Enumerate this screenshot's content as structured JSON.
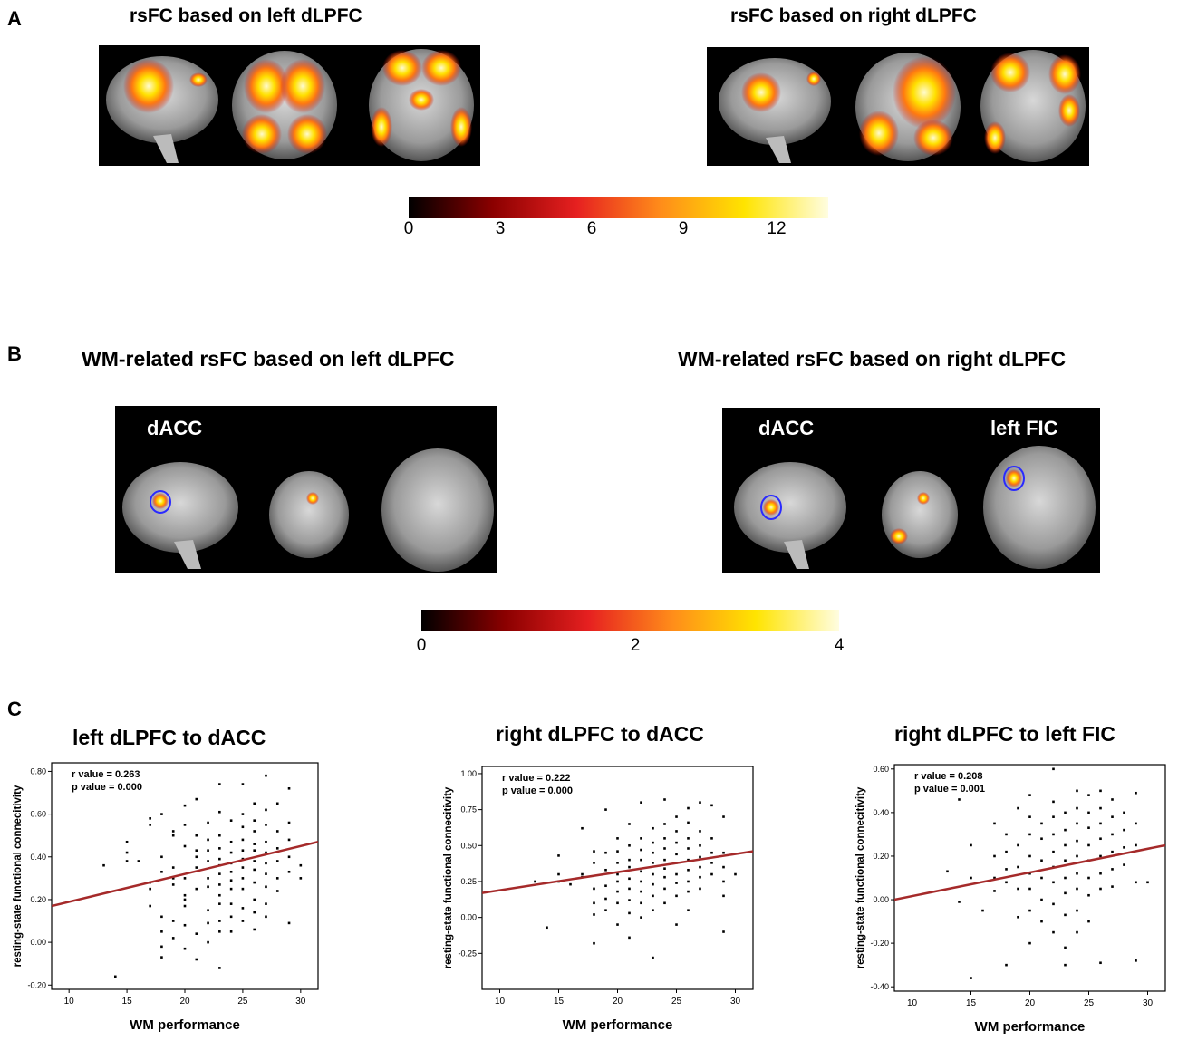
{
  "panelA": {
    "letter": "A",
    "left_title": "rsFC based on left dLPFC",
    "right_title": "rsFC based on right dLPFC",
    "colorbar": {
      "ticks": [
        "0",
        "3",
        "6",
        "9",
        "12"
      ],
      "colors": [
        "#000000",
        "#8b0000",
        "#e62020",
        "#ff8c1a",
        "#ffe400",
        "#fffde0"
      ]
    }
  },
  "panelB": {
    "letter": "B",
    "left_title": "WM-related rsFC based on left dLPFC",
    "right_title": "WM-related rsFC based on right dLPFC",
    "left_labels": [
      "dACC"
    ],
    "right_labels": [
      "dACC",
      "left FIC"
    ],
    "colorbar": {
      "ticks": [
        "0",
        "2",
        "4"
      ],
      "colors": [
        "#000000",
        "#8b0000",
        "#e62020",
        "#ff8c1a",
        "#ffe400",
        "#fffde0"
      ]
    }
  },
  "panelC": {
    "letter": "C"
  },
  "chart_data": [
    {
      "type": "scatter",
      "title": "left dLPFC to dACC",
      "xlabel": "WM performance",
      "ylabel": "resting-state functional connecitivity",
      "xlim": [
        8.5,
        31.5
      ],
      "ylim": [
        -0.22,
        0.84
      ],
      "xticks": [
        "10",
        "15",
        "20",
        "25",
        "30"
      ],
      "yticks": [
        "-0.20",
        "0.00",
        "0.20",
        "0.40",
        "0.60",
        "0.80"
      ],
      "stats": [
        "r value = 0.263",
        "p value = 0.000"
      ],
      "fit": {
        "x": [
          8.5,
          31.5
        ],
        "y": [
          0.17,
          0.47
        ]
      },
      "line_color": "#a52a2a",
      "points": [
        [
          13,
          0.36
        ],
        [
          14,
          -0.16
        ],
        [
          15,
          0.47
        ],
        [
          15,
          0.42
        ],
        [
          15,
          0.38
        ],
        [
          16,
          0.38
        ],
        [
          17,
          0.28
        ],
        [
          17,
          0.25
        ],
        [
          17,
          0.58
        ],
        [
          17,
          0.55
        ],
        [
          17,
          0.17
        ],
        [
          18,
          0.33
        ],
        [
          18,
          0.4
        ],
        [
          18,
          0.6
        ],
        [
          18,
          0.12
        ],
        [
          18,
          0.05
        ],
        [
          18,
          -0.02
        ],
        [
          18,
          -0.07
        ],
        [
          19,
          0.3
        ],
        [
          19,
          0.35
        ],
        [
          19,
          0.5
        ],
        [
          19,
          0.52
        ],
        [
          19,
          0.1
        ],
        [
          19,
          0.02
        ],
        [
          19,
          0.27
        ],
        [
          20,
          0.3
        ],
        [
          20,
          0.64
        ],
        [
          20,
          0.55
        ],
        [
          20,
          0.45
        ],
        [
          20,
          0.22
        ],
        [
          20,
          0.2
        ],
        [
          20,
          0.17
        ],
        [
          20,
          0.08
        ],
        [
          20,
          -0.03
        ],
        [
          21,
          0.67
        ],
        [
          21,
          0.5
        ],
        [
          21,
          0.43
        ],
        [
          21,
          0.4
        ],
        [
          21,
          0.35
        ],
        [
          21,
          0.25
        ],
        [
          21,
          0.04
        ],
        [
          21,
          -0.08
        ],
        [
          22,
          0.56
        ],
        [
          22,
          0.48
        ],
        [
          22,
          0.43
        ],
        [
          22,
          0.38
        ],
        [
          22,
          0.3
        ],
        [
          22,
          0.26
        ],
        [
          22,
          0.15
        ],
        [
          22,
          0.09
        ],
        [
          22,
          0.0
        ],
        [
          23,
          0.74
        ],
        [
          23,
          0.61
        ],
        [
          23,
          0.5
        ],
        [
          23,
          0.44
        ],
        [
          23,
          0.39
        ],
        [
          23,
          0.36
        ],
        [
          23,
          0.32
        ],
        [
          23,
          0.27
        ],
        [
          23,
          0.22
        ],
        [
          23,
          0.18
        ],
        [
          23,
          0.1
        ],
        [
          23,
          0.05
        ],
        [
          23,
          -0.12
        ],
        [
          24,
          0.57
        ],
        [
          24,
          0.47
        ],
        [
          24,
          0.42
        ],
        [
          24,
          0.37
        ],
        [
          24,
          0.33
        ],
        [
          24,
          0.29
        ],
        [
          24,
          0.25
        ],
        [
          24,
          0.18
        ],
        [
          24,
          0.12
        ],
        [
          24,
          0.05
        ],
        [
          25,
          0.74
        ],
        [
          25,
          0.6
        ],
        [
          25,
          0.54
        ],
        [
          25,
          0.48
        ],
        [
          25,
          0.43
        ],
        [
          25,
          0.39
        ],
        [
          25,
          0.35
        ],
        [
          25,
          0.3
        ],
        [
          25,
          0.25
        ],
        [
          25,
          0.16
        ],
        [
          25,
          0.1
        ],
        [
          26,
          0.65
        ],
        [
          26,
          0.57
        ],
        [
          26,
          0.52
        ],
        [
          26,
          0.46
        ],
        [
          26,
          0.43
        ],
        [
          26,
          0.38
        ],
        [
          26,
          0.34
        ],
        [
          26,
          0.28
        ],
        [
          26,
          0.2
        ],
        [
          26,
          0.14
        ],
        [
          26,
          0.06
        ],
        [
          27,
          0.78
        ],
        [
          27,
          0.62
        ],
        [
          27,
          0.55
        ],
        [
          27,
          0.47
        ],
        [
          27,
          0.42
        ],
        [
          27,
          0.37
        ],
        [
          27,
          0.32
        ],
        [
          27,
          0.26
        ],
        [
          27,
          0.18
        ],
        [
          27,
          0.12
        ],
        [
          28,
          0.65
        ],
        [
          28,
          0.52
        ],
        [
          28,
          0.44
        ],
        [
          28,
          0.38
        ],
        [
          28,
          0.3
        ],
        [
          28,
          0.24
        ],
        [
          29,
          0.72
        ],
        [
          29,
          0.56
        ],
        [
          29,
          0.48
        ],
        [
          29,
          0.4
        ],
        [
          29,
          0.33
        ],
        [
          29,
          0.09
        ],
        [
          30,
          0.36
        ],
        [
          30,
          0.3
        ]
      ]
    },
    {
      "type": "scatter",
      "title": "right dLPFC to dACC",
      "xlabel": "WM performance",
      "ylabel": "resting-state functional connecitivity",
      "xlim": [
        8.5,
        31.5
      ],
      "ylim": [
        -0.5,
        1.05
      ],
      "xticks": [
        "10",
        "15",
        "20",
        "25",
        "30"
      ],
      "yticks": [
        "-0.25",
        "0.00",
        "0.25",
        "0.50",
        "0.75",
        "1.00"
      ],
      "stats": [
        "r value = 0.222",
        "p value = 0.000"
      ],
      "fit": {
        "x": [
          8.5,
          31.5
        ],
        "y": [
          0.17,
          0.46
        ]
      },
      "line_color": "#a52a2a",
      "points": [
        [
          13,
          0.25
        ],
        [
          14,
          -0.07
        ],
        [
          15,
          0.43
        ],
        [
          15,
          0.3
        ],
        [
          15,
          0.25
        ],
        [
          16,
          0.23
        ],
        [
          17,
          0.62
        ],
        [
          17,
          0.3
        ],
        [
          17,
          0.28
        ],
        [
          18,
          0.46
        ],
        [
          18,
          0.38
        ],
        [
          18,
          0.2
        ],
        [
          18,
          0.1
        ],
        [
          18,
          0.02
        ],
        [
          18,
          -0.18
        ],
        [
          19,
          0.75
        ],
        [
          19,
          0.45
        ],
        [
          19,
          0.33
        ],
        [
          19,
          0.22
        ],
        [
          19,
          0.13
        ],
        [
          19,
          0.05
        ],
        [
          20,
          0.55
        ],
        [
          20,
          0.46
        ],
        [
          20,
          0.38
        ],
        [
          20,
          0.3
        ],
        [
          20,
          0.25
        ],
        [
          20,
          0.18
        ],
        [
          20,
          0.1
        ],
        [
          20,
          -0.05
        ],
        [
          21,
          0.65
        ],
        [
          21,
          0.5
        ],
        [
          21,
          0.4
        ],
        [
          21,
          0.35
        ],
        [
          21,
          0.27
        ],
        [
          21,
          0.2
        ],
        [
          21,
          0.12
        ],
        [
          21,
          0.03
        ],
        [
          21,
          -0.14
        ],
        [
          22,
          0.8
        ],
        [
          22,
          0.55
        ],
        [
          22,
          0.47
        ],
        [
          22,
          0.4
        ],
        [
          22,
          0.32
        ],
        [
          22,
          0.25
        ],
        [
          22,
          0.18
        ],
        [
          22,
          0.1
        ],
        [
          22,
          0.0
        ],
        [
          23,
          0.62
        ],
        [
          23,
          0.52
        ],
        [
          23,
          0.45
        ],
        [
          23,
          0.38
        ],
        [
          23,
          0.3
        ],
        [
          23,
          0.23
        ],
        [
          23,
          0.15
        ],
        [
          23,
          0.05
        ],
        [
          23,
          -0.28
        ],
        [
          24,
          0.82
        ],
        [
          24,
          0.65
        ],
        [
          24,
          0.55
        ],
        [
          24,
          0.48
        ],
        [
          24,
          0.4
        ],
        [
          24,
          0.34
        ],
        [
          24,
          0.28
        ],
        [
          24,
          0.2
        ],
        [
          24,
          0.1
        ],
        [
          25,
          0.7
        ],
        [
          25,
          0.6
        ],
        [
          25,
          0.52
        ],
        [
          25,
          0.44
        ],
        [
          25,
          0.38
        ],
        [
          25,
          0.3
        ],
        [
          25,
          0.24
        ],
        [
          25,
          0.15
        ],
        [
          25,
          -0.05
        ],
        [
          26,
          0.76
        ],
        [
          26,
          0.66
        ],
        [
          26,
          0.55
        ],
        [
          26,
          0.48
        ],
        [
          26,
          0.4
        ],
        [
          26,
          0.33
        ],
        [
          26,
          0.25
        ],
        [
          26,
          0.18
        ],
        [
          26,
          0.05
        ],
        [
          27,
          0.8
        ],
        [
          27,
          0.6
        ],
        [
          27,
          0.5
        ],
        [
          27,
          0.42
        ],
        [
          27,
          0.35
        ],
        [
          27,
          0.28
        ],
        [
          27,
          0.2
        ],
        [
          28,
          0.78
        ],
        [
          28,
          0.55
        ],
        [
          28,
          0.45
        ],
        [
          28,
          0.38
        ],
        [
          28,
          0.3
        ],
        [
          29,
          0.7
        ],
        [
          29,
          0.45
        ],
        [
          29,
          0.35
        ],
        [
          29,
          0.25
        ],
        [
          29,
          0.15
        ],
        [
          29,
          -0.1
        ],
        [
          30,
          0.3
        ]
      ]
    },
    {
      "type": "scatter",
      "title": "right dLPFC to left FIC",
      "xlabel": "WM performance",
      "ylabel": "resting-state functional connecitivity",
      "xlim": [
        8.5,
        31.5
      ],
      "ylim": [
        -0.42,
        0.62
      ],
      "xticks": [
        "10",
        "15",
        "20",
        "25",
        "30"
      ],
      "yticks": [
        "-0.40",
        "-0.20",
        "0.00",
        "0.20",
        "0.40",
        "0.60"
      ],
      "stats": [
        "r value = 0.208",
        "p value = 0.001"
      ],
      "fit": {
        "x": [
          8.5,
          31.5
        ],
        "y": [
          0.0,
          0.25
        ]
      },
      "line_color": "#a52a2a",
      "points": [
        [
          13,
          0.13
        ],
        [
          14,
          0.46
        ],
        [
          14,
          -0.01
        ],
        [
          15,
          0.25
        ],
        [
          15,
          0.1
        ],
        [
          15,
          -0.36
        ],
        [
          16,
          -0.05
        ],
        [
          17,
          0.35
        ],
        [
          17,
          0.2
        ],
        [
          17,
          0.1
        ],
        [
          17,
          0.04
        ],
        [
          18,
          0.3
        ],
        [
          18,
          0.22
        ],
        [
          18,
          0.14
        ],
        [
          18,
          0.08
        ],
        [
          18,
          -0.3
        ],
        [
          19,
          0.42
        ],
        [
          19,
          0.25
        ],
        [
          19,
          0.15
        ],
        [
          19,
          0.05
        ],
        [
          19,
          -0.08
        ],
        [
          20,
          0.48
        ],
        [
          20,
          0.38
        ],
        [
          20,
          0.3
        ],
        [
          20,
          0.2
        ],
        [
          20,
          0.12
        ],
        [
          20,
          0.05
        ],
        [
          20,
          -0.05
        ],
        [
          20,
          -0.2
        ],
        [
          21,
          0.35
        ],
        [
          21,
          0.28
        ],
        [
          21,
          0.18
        ],
        [
          21,
          0.1
        ],
        [
          21,
          0.0
        ],
        [
          21,
          -0.1
        ],
        [
          22,
          0.6
        ],
        [
          22,
          0.45
        ],
        [
          22,
          0.38
        ],
        [
          22,
          0.3
        ],
        [
          22,
          0.22
        ],
        [
          22,
          0.15
        ],
        [
          22,
          0.08
        ],
        [
          22,
          -0.02
        ],
        [
          22,
          -0.15
        ],
        [
          23,
          0.4
        ],
        [
          23,
          0.32
        ],
        [
          23,
          0.25
        ],
        [
          23,
          0.18
        ],
        [
          23,
          0.1
        ],
        [
          23,
          0.03
        ],
        [
          23,
          -0.07
        ],
        [
          23,
          -0.22
        ],
        [
          23,
          -0.3
        ],
        [
          24,
          0.5
        ],
        [
          24,
          0.42
        ],
        [
          24,
          0.35
        ],
        [
          24,
          0.27
        ],
        [
          24,
          0.2
        ],
        [
          24,
          0.12
        ],
        [
          24,
          0.05
        ],
        [
          24,
          -0.05
        ],
        [
          24,
          -0.15
        ],
        [
          25,
          0.48
        ],
        [
          25,
          0.4
        ],
        [
          25,
          0.33
        ],
        [
          25,
          0.25
        ],
        [
          25,
          0.18
        ],
        [
          25,
          0.1
        ],
        [
          25,
          0.02
        ],
        [
          25,
          -0.1
        ],
        [
          26,
          0.5
        ],
        [
          26,
          0.42
        ],
        [
          26,
          0.35
        ],
        [
          26,
          0.28
        ],
        [
          26,
          0.2
        ],
        [
          26,
          0.12
        ],
        [
          26,
          0.05
        ],
        [
          26,
          -0.29
        ],
        [
          27,
          0.46
        ],
        [
          27,
          0.38
        ],
        [
          27,
          0.3
        ],
        [
          27,
          0.22
        ],
        [
          27,
          0.14
        ],
        [
          27,
          0.06
        ],
        [
          28,
          0.4
        ],
        [
          28,
          0.32
        ],
        [
          28,
          0.24
        ],
        [
          28,
          0.16
        ],
        [
          29,
          0.49
        ],
        [
          29,
          0.35
        ],
        [
          29,
          0.25
        ],
        [
          29,
          0.08
        ],
        [
          29,
          -0.28
        ],
        [
          30,
          0.08
        ]
      ]
    }
  ]
}
